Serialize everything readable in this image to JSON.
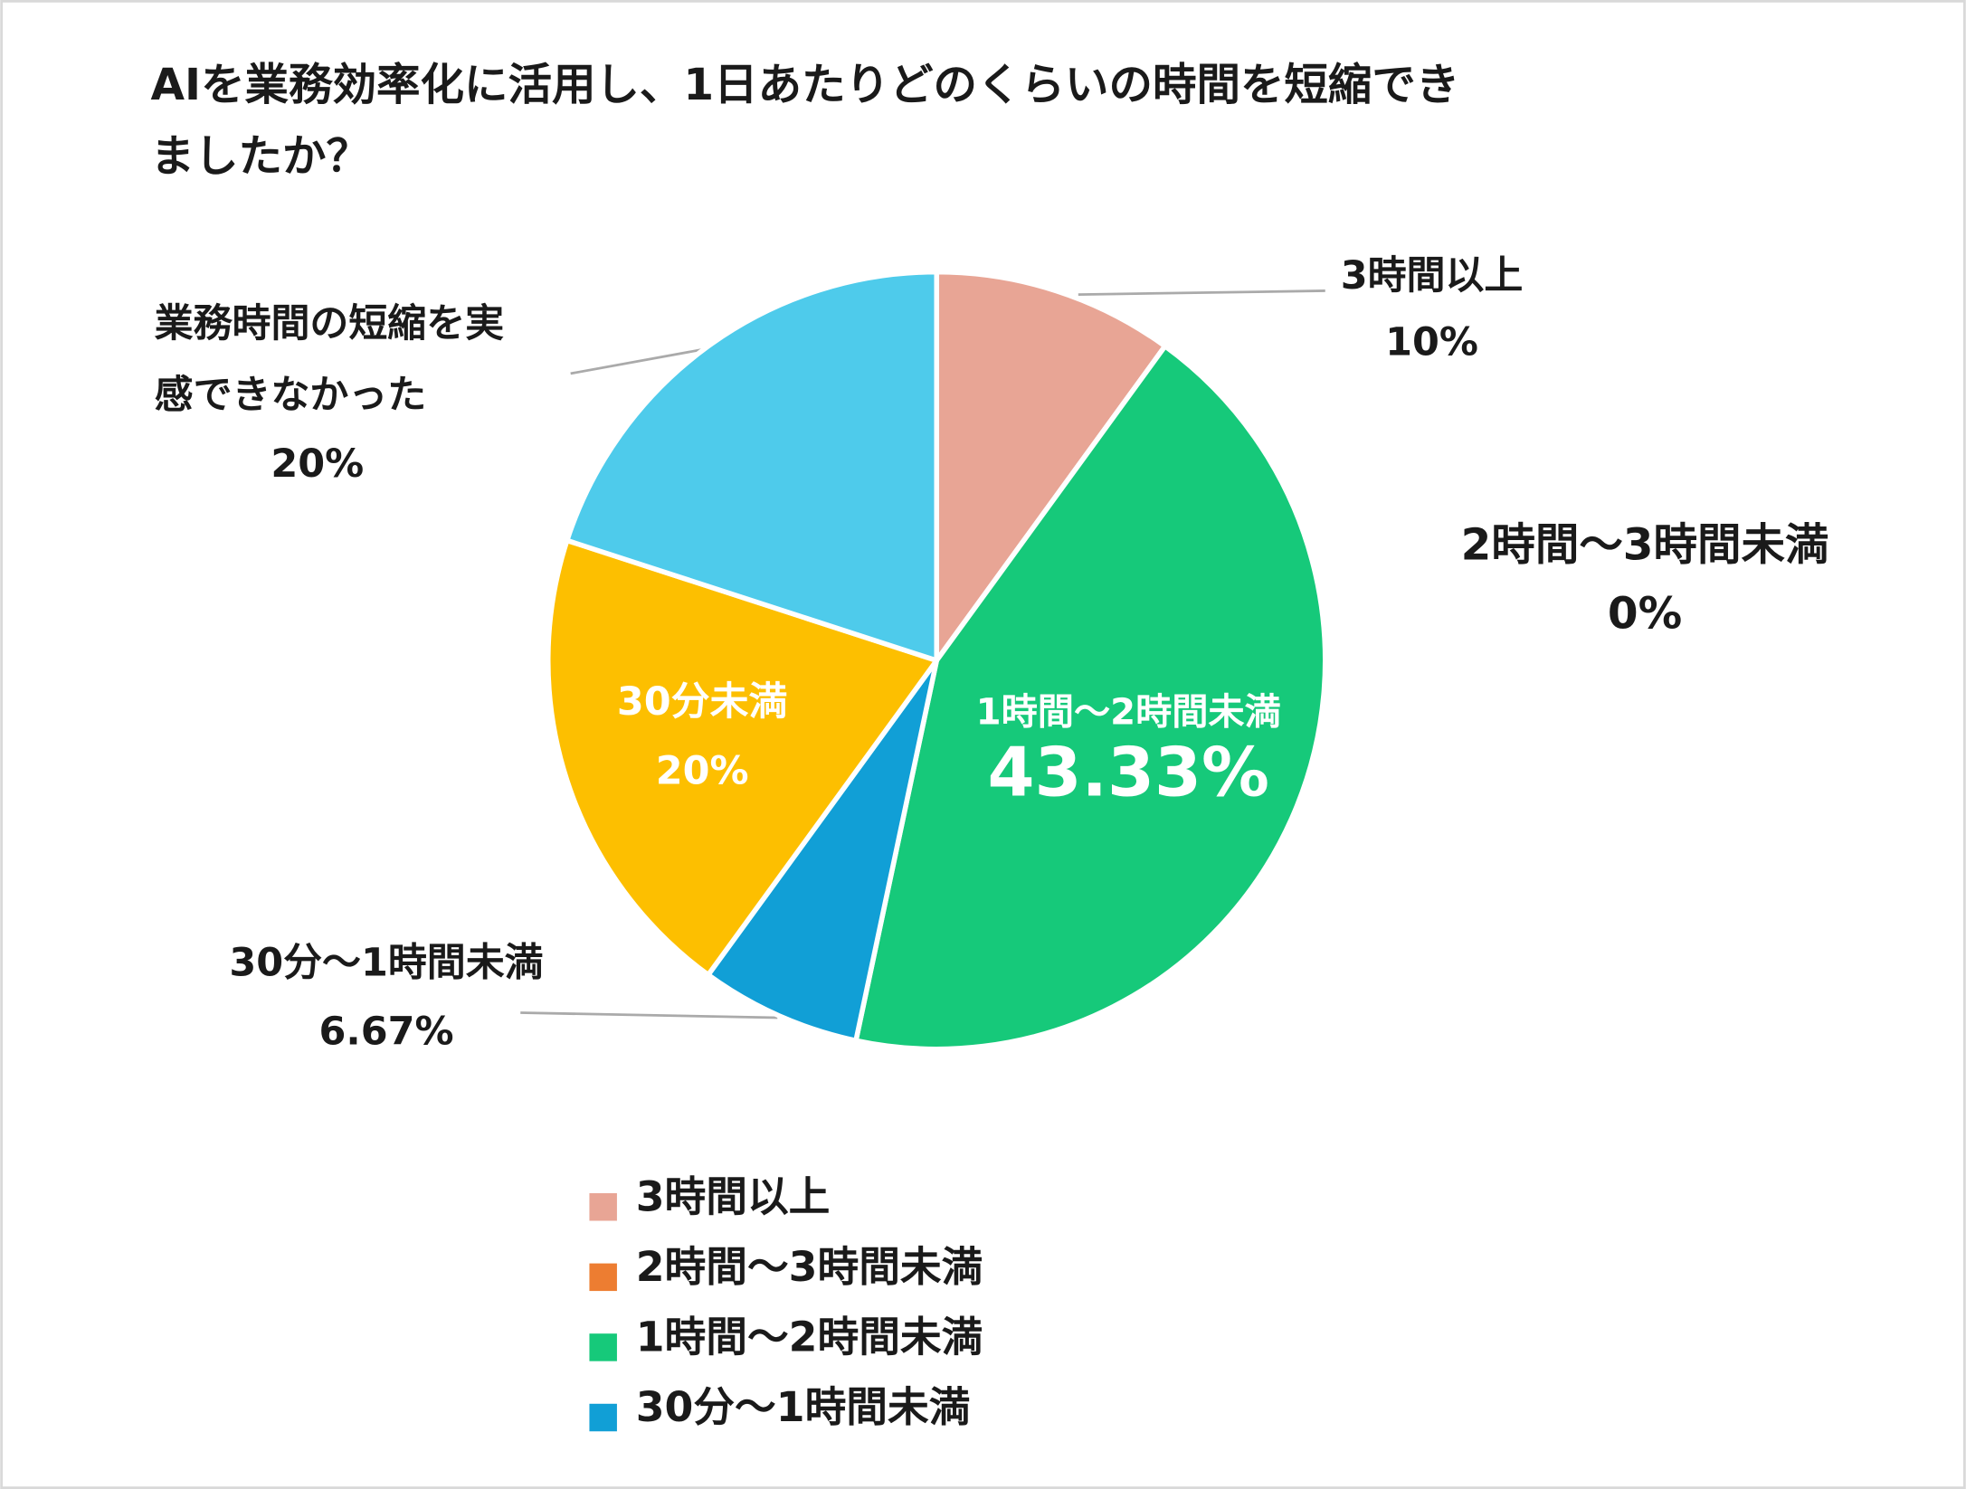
{
  "chart_data": {
    "type": "pie",
    "title": "AIを業務効率化に活用し、1日あたりどのくらいの時間を短縮できましたか？",
    "categories": [
      "3時間以上",
      "2時間〜3時間未満",
      "1時間〜2時間未満",
      "30分〜1時間未満",
      "30分未満",
      "業務時間の短縮を実感できなかった"
    ],
    "values": [
      10,
      0,
      43.33,
      6.67,
      20,
      20
    ],
    "value_labels": [
      "10%",
      "0%",
      "43.33%",
      "6.67%",
      "20%",
      "20%"
    ],
    "colors": [
      "#e8a595",
      "#ed7d31",
      "#16c97a",
      "#119fd6",
      "#fdbf00",
      "#4ecbeb"
    ]
  }
}
